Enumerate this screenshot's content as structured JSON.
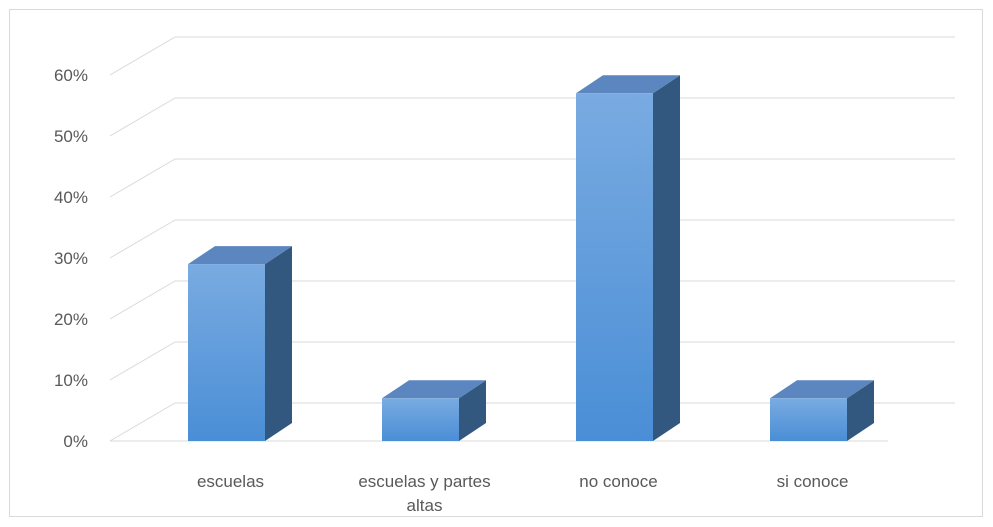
{
  "chart_data": {
    "type": "bar",
    "style": "3d-column",
    "categories": [
      "escuelas",
      "escuelas y partes altas",
      "no conoce",
      "si conoce"
    ],
    "category_label_lines": [
      [
        "escuelas"
      ],
      [
        "escuelas y partes",
        "altas"
      ],
      [
        "no conoce"
      ],
      [
        "si conoce"
      ]
    ],
    "values": [
      29,
      7,
      57,
      7
    ],
    "yticks": [
      "0%",
      "10%",
      "20%",
      "30%",
      "40%",
      "50%",
      "60%"
    ],
    "ylim": [
      0,
      60
    ],
    "grid": true,
    "legend": "none",
    "colors": {
      "front_top": "#79abe1",
      "front_bottom": "#4a8ed6",
      "top": "#5b86bf",
      "side": "#33587f",
      "grid": "#d9d9d9",
      "text": "#595959"
    }
  }
}
